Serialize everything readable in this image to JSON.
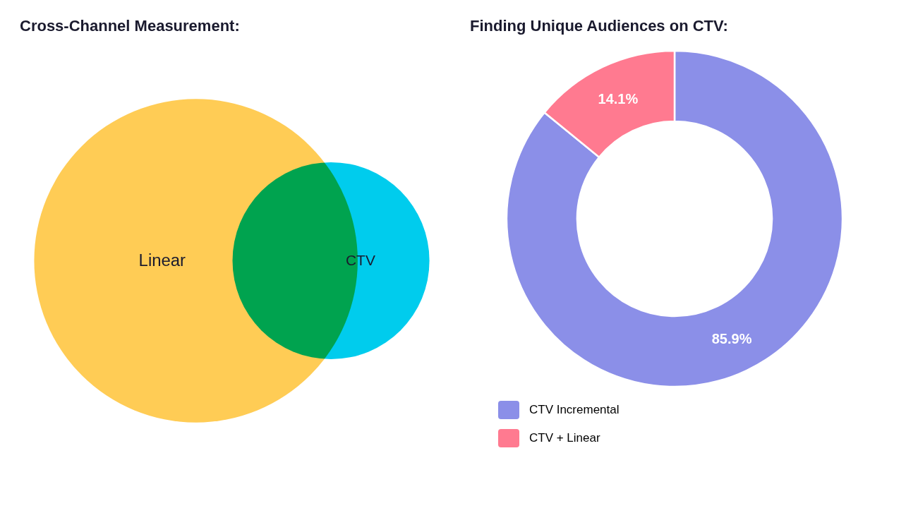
{
  "chart_data": [
    {
      "type": "venn",
      "title": "Cross-Channel Measurement:",
      "categories": [
        "Linear",
        "CTV"
      ],
      "colors": [
        "#FFCC55",
        "#00CCED"
      ]
    },
    {
      "type": "pie",
      "title": "Finding Unique Audiences on CTV:",
      "categories": [
        "CTV Incremental",
        "CTV + Linear"
      ],
      "values": [
        85.9,
        14.1
      ],
      "value_labels": [
        "85.9%",
        "14.1%"
      ],
      "colors": [
        "#8B8FE8",
        "#FF7A90"
      ],
      "data_labels": true,
      "legend": "bottom"
    }
  ]
}
